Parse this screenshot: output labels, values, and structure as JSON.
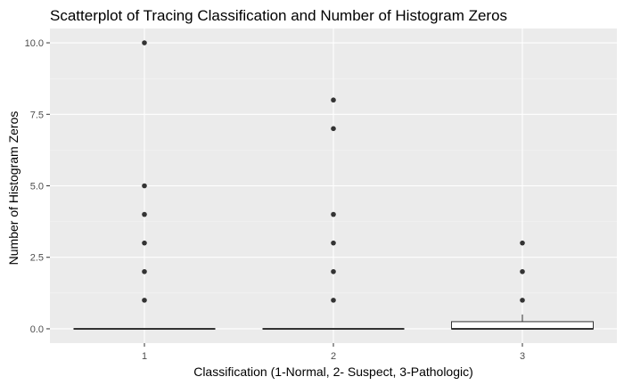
{
  "chart_data": {
    "type": "boxplot",
    "title": "Scatterplot of Tracing Classification and Number of Histogram Zeros",
    "xlabel": "Classification (1-Normal, 2- Suspect, 3-Pathologic)",
    "ylabel": "Number of Histogram Zeros",
    "categories": [
      "1",
      "2",
      "3"
    ],
    "y_ticks": [
      "0.0",
      "2.5",
      "5.0",
      "7.5",
      "10.0"
    ],
    "y_tick_values": [
      0,
      2.5,
      5,
      7.5,
      10
    ],
    "ylim": [
      -0.5,
      10.5
    ],
    "grid": true,
    "boxes": [
      {
        "category": "1",
        "q1": 0,
        "median": 0,
        "q3": 0,
        "whisker_low": 0,
        "whisker_high": 0,
        "outliers": [
          1,
          2,
          3,
          4,
          5,
          10
        ]
      },
      {
        "category": "2",
        "q1": 0,
        "median": 0,
        "q3": 0,
        "whisker_low": 0,
        "whisker_high": 0,
        "outliers": [
          1,
          2,
          3,
          4,
          7,
          8
        ]
      },
      {
        "category": "3",
        "q1": 0,
        "median": 0,
        "q3": 0.25,
        "whisker_low": 0,
        "whisker_high": 0.5,
        "outliers": [
          1,
          2,
          3
        ]
      }
    ],
    "colors": {
      "panel_background": "#ebebeb",
      "grid_major": "#ffffff",
      "grid_minor": "#f4f4f4",
      "box_fill": "#ffffff",
      "box_line": "#333333",
      "outlier": "#333333"
    }
  }
}
